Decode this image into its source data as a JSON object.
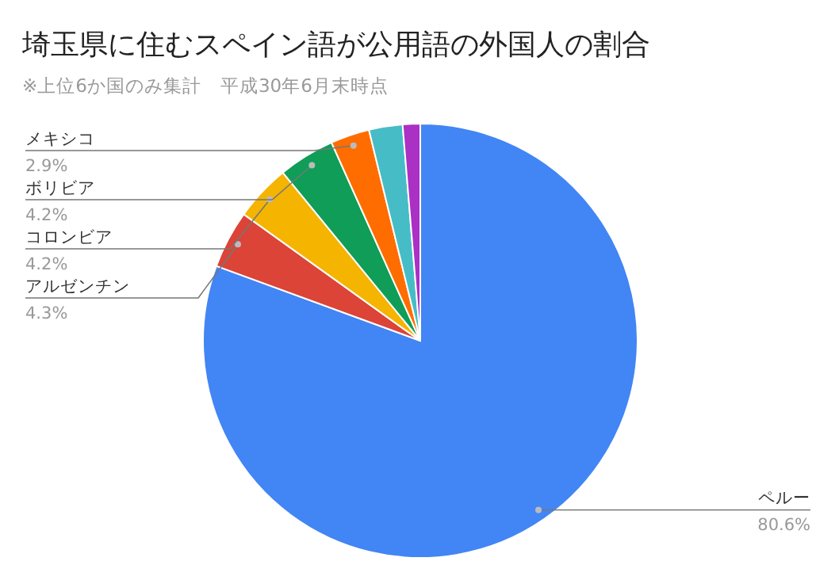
{
  "chart_data": {
    "type": "pie",
    "title": "埼玉県に住むスペイン語が公用語の外国人の割合",
    "subtitle": "※上位6か国のみ集計　平成30年6月末時点",
    "categories": [
      "ペルー",
      "アルゼンチン",
      "コロンビア",
      "ボリビア",
      "メキシコ",
      null,
      null
    ],
    "values": [
      80.6,
      4.3,
      4.2,
      4.2,
      2.9,
      2.5,
      1.3
    ],
    "value_labels": [
      "80.6%",
      "4.3%",
      "4.2%",
      "4.2%",
      "2.9%",
      null,
      null
    ],
    "colors": [
      "#4285f4",
      "#db4437",
      "#f4b400",
      "#0f9d58",
      "#ff6d00",
      "#46bdc6",
      "#ab30c4"
    ],
    "legend": false
  }
}
